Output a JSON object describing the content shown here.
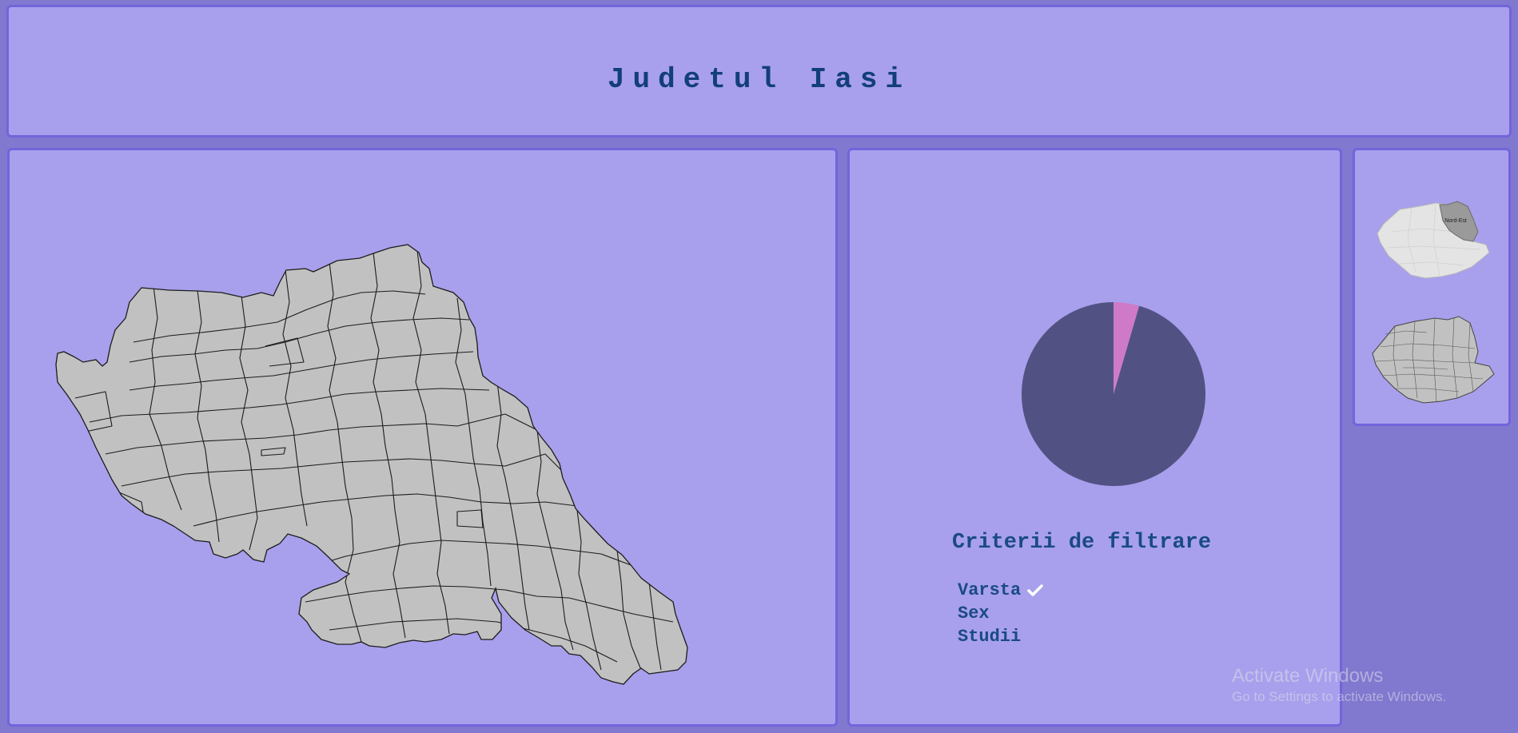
{
  "header": {
    "title": "Judetul Iasi"
  },
  "county_map": {
    "icon": "iasi-county-map"
  },
  "chart_data": {
    "type": "pie",
    "title": "",
    "slices": [
      {
        "label": "",
        "value": 95.5,
        "color": "#515283"
      },
      {
        "label": "",
        "value": 4.5,
        "color": "#cf7ac9"
      }
    ]
  },
  "filters": {
    "title": "Criterii de filtrare",
    "items": [
      {
        "label": "Varsta",
        "selected": true
      },
      {
        "label": "Sex",
        "selected": false
      },
      {
        "label": "Studii",
        "selected": false
      }
    ]
  },
  "mini_maps": {
    "first": {
      "icon": "romania-region-map",
      "highlight_label": "Nord-Est"
    },
    "second": {
      "icon": "romania-counties-map"
    }
  },
  "os_overlay": {
    "line1": "Activate Windows",
    "line2": "Go to Settings to activate Windows."
  }
}
